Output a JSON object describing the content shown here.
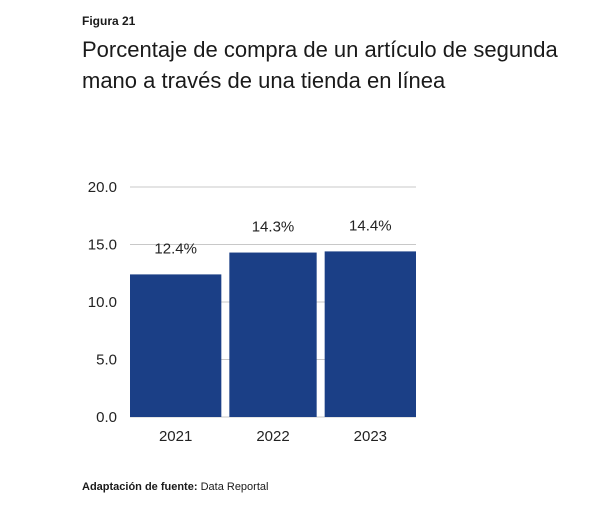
{
  "figure_label": "Figura 21",
  "title": "Porcentaje de compra de un artículo de segunda mano a través de una tienda en línea",
  "source": {
    "label": "Adaptación de fuente:",
    "value": "Data Reportal"
  },
  "colors": {
    "bar": "#1b3f86",
    "grid": "#c8c8c8",
    "text": "#222222"
  },
  "chart_data": {
    "type": "bar",
    "categories": [
      "2021",
      "2022",
      "2023"
    ],
    "values": [
      12.4,
      14.3,
      14.4
    ],
    "data_labels": [
      "12.4%",
      "14.3%",
      "14.4%"
    ],
    "y_ticks": [
      "0.0",
      "5.0",
      "10.0",
      "15.0",
      "20.0"
    ],
    "ylim": [
      0,
      20
    ],
    "grid": true,
    "legend": "none"
  }
}
